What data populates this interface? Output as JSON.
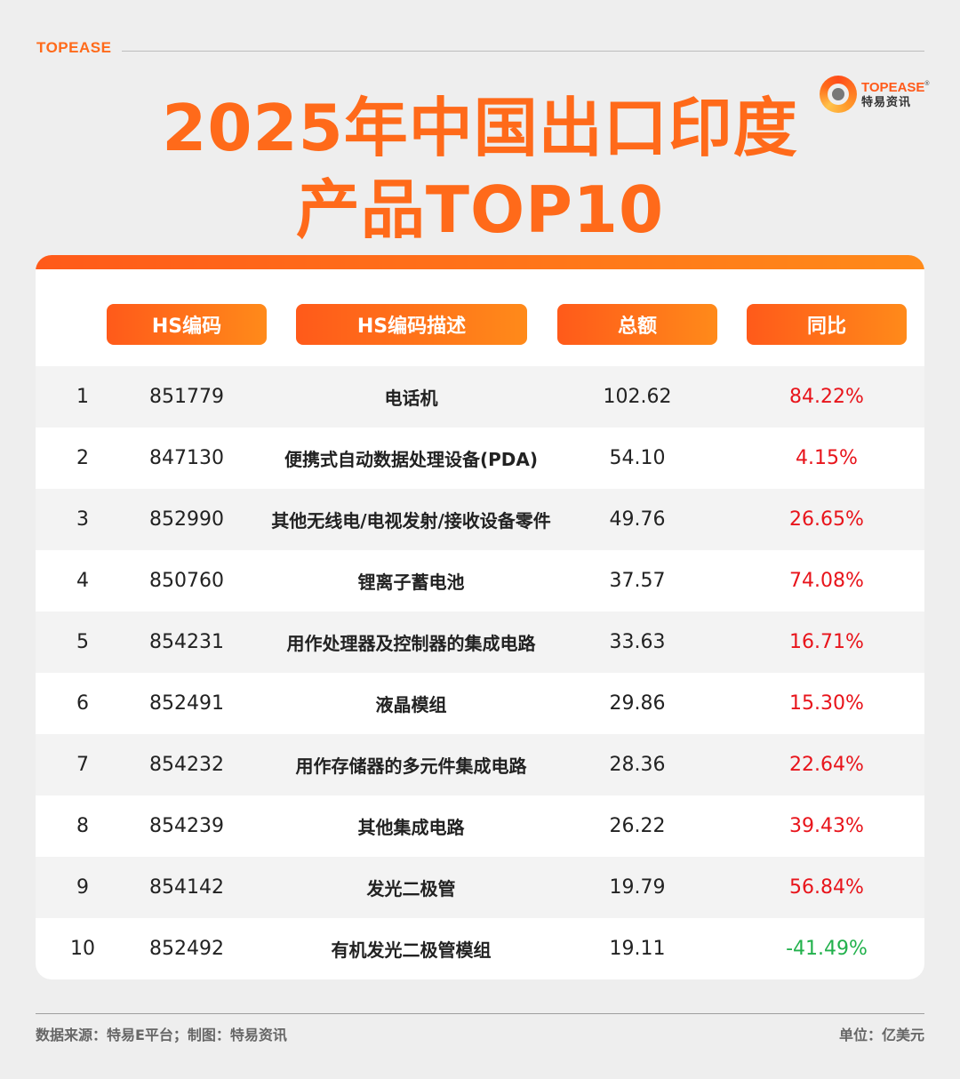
{
  "brand": "TOPEASE",
  "logo": {
    "en": "TOPEASE",
    "reg": "®",
    "cn": "特易资讯"
  },
  "title": {
    "line1": "2025年中国出口印度",
    "line2": "产品TOP10"
  },
  "colors": {
    "accent": "#ff6a1a",
    "positive": "#e8141b",
    "negative": "#22b14c"
  },
  "chart_data": {
    "type": "table",
    "columns": [
      "HS编码",
      "HS编码描述",
      "总额",
      "同比"
    ],
    "rows": [
      {
        "rank": "1",
        "code": "851779",
        "desc": "电话机",
        "total": "102.62",
        "yoy": "84.22%",
        "yoy_value": 84.22
      },
      {
        "rank": "2",
        "code": "847130",
        "desc": "便携式自动数据处理设备(PDA)",
        "total": "54.10",
        "yoy": "4.15%",
        "yoy_value": 4.15
      },
      {
        "rank": "3",
        "code": "852990",
        "desc": "其他无线电/电视发射/接收设备零件",
        "total": "49.76",
        "yoy": "26.65%",
        "yoy_value": 26.65
      },
      {
        "rank": "4",
        "code": "850760",
        "desc": "锂离子蓄电池",
        "total": "37.57",
        "yoy": "74.08%",
        "yoy_value": 74.08
      },
      {
        "rank": "5",
        "code": "854231",
        "desc": "用作处理器及控制器的集成电路",
        "total": "33.63",
        "yoy": "16.71%",
        "yoy_value": 16.71
      },
      {
        "rank": "6",
        "code": "852491",
        "desc": "液晶模组",
        "total": "29.86",
        "yoy": "15.30%",
        "yoy_value": 15.3
      },
      {
        "rank": "7",
        "code": "854232",
        "desc": "用作存储器的多元件集成电路",
        "total": "28.36",
        "yoy": "22.64%",
        "yoy_value": 22.64
      },
      {
        "rank": "8",
        "code": "854239",
        "desc": "其他集成电路",
        "total": "26.22",
        "yoy": "39.43%",
        "yoy_value": 39.43
      },
      {
        "rank": "9",
        "code": "854142",
        "desc": "发光二极管",
        "total": "19.79",
        "yoy": "56.84%",
        "yoy_value": 56.84
      },
      {
        "rank": "10",
        "code": "852492",
        "desc": "有机发光二极管模组",
        "total": "19.11",
        "yoy": "-41.49%",
        "yoy_value": -41.49
      }
    ]
  },
  "footer": {
    "source": "数据来源：特易E平台；制图：特易资讯",
    "unit": "单位：亿美元"
  }
}
